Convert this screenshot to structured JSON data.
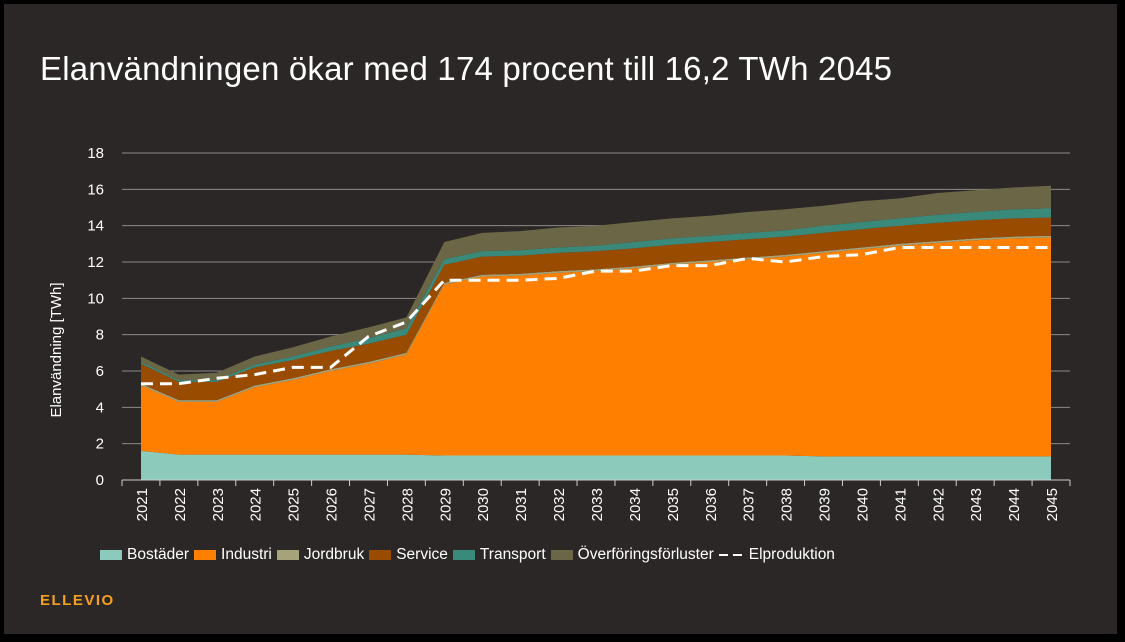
{
  "slide": {
    "title": "Elanvändningen ökar med 174 procent till 16,2 TWh 2045",
    "logo": "ELLEVIO"
  },
  "colors": {
    "background": "#2b2726",
    "grid": "#8c8a88",
    "Bostäder": "#8ccbbb",
    "Industri": "#ff8000",
    "Jordbruk": "#a6a27a",
    "Service": "#994c00",
    "Transport": "#3a8a7c",
    "Överföringsförluster": "#6b6646",
    "Elproduktion": "#ffffff",
    "logo": "#f5a11d"
  },
  "chart_data": {
    "type": "area",
    "stacked": true,
    "title": "Elanvändningen ökar med 174 procent till 16,2 TWh 2045",
    "xlabel": "",
    "ylabel": "Elanvändning [TWh]",
    "ylim": [
      0,
      18
    ],
    "yticks": [
      0,
      2,
      4,
      6,
      8,
      10,
      12,
      14,
      16,
      18
    ],
    "grid": true,
    "legend_position": "bottom",
    "x": [
      "2021",
      "2022",
      "2023",
      "2024",
      "2025",
      "2026",
      "2027",
      "2028",
      "2029",
      "2030",
      "2031",
      "2032",
      "2033",
      "2034",
      "2035",
      "2036",
      "2037",
      "2038",
      "2039",
      "2040",
      "2041",
      "2042",
      "2043",
      "2044",
      "2045"
    ],
    "series": [
      {
        "name": "Bostäder",
        "values": [
          1.6,
          1.4,
          1.4,
          1.4,
          1.4,
          1.4,
          1.4,
          1.4,
          1.35,
          1.35,
          1.35,
          1.35,
          1.35,
          1.35,
          1.35,
          1.35,
          1.35,
          1.35,
          1.3,
          1.3,
          1.3,
          1.3,
          1.3,
          1.3,
          1.3
        ]
      },
      {
        "name": "Industri",
        "values": [
          3.6,
          2.9,
          2.9,
          3.7,
          4.1,
          4.6,
          5.0,
          5.5,
          9.4,
          9.85,
          9.9,
          10.05,
          10.15,
          10.3,
          10.5,
          10.65,
          10.8,
          10.95,
          11.2,
          11.4,
          11.6,
          11.75,
          11.9,
          12.0,
          12.05
        ]
      },
      {
        "name": "Jordbruk",
        "values": [
          0.1,
          0.1,
          0.1,
          0.1,
          0.1,
          0.1,
          0.1,
          0.1,
          0.1,
          0.1,
          0.1,
          0.1,
          0.1,
          0.1,
          0.1,
          0.1,
          0.1,
          0.1,
          0.1,
          0.1,
          0.1,
          0.1,
          0.1,
          0.1,
          0.1
        ]
      },
      {
        "name": "Service",
        "values": [
          1.1,
          1.0,
          1.0,
          1.0,
          1.0,
          1.0,
          1.0,
          1.0,
          1.0,
          1.0,
          1.0,
          1.0,
          1.0,
          1.0,
          1.0,
          1.0,
          1.0,
          1.0,
          1.0,
          1.0,
          1.0,
          1.0,
          1.0,
          1.0,
          1.0
        ]
      },
      {
        "name": "Transport",
        "values": [
          0.1,
          0.1,
          0.1,
          0.15,
          0.2,
          0.25,
          0.3,
          0.35,
          0.3,
          0.3,
          0.3,
          0.3,
          0.3,
          0.35,
          0.35,
          0.35,
          0.35,
          0.35,
          0.4,
          0.4,
          0.4,
          0.45,
          0.45,
          0.5,
          0.5
        ]
      },
      {
        "name": "Överföringsförluster",
        "values": [
          0.3,
          0.3,
          0.4,
          0.45,
          0.5,
          0.55,
          0.6,
          0.6,
          0.95,
          1.0,
          1.05,
          1.1,
          1.1,
          1.1,
          1.1,
          1.1,
          1.15,
          1.15,
          1.1,
          1.15,
          1.1,
          1.2,
          1.2,
          1.2,
          1.25
        ]
      }
    ],
    "line": {
      "name": "Elproduktion",
      "style": "dashed",
      "values": [
        5.3,
        5.3,
        5.6,
        5.8,
        6.2,
        6.2,
        7.9,
        8.7,
        11.0,
        11.0,
        11.0,
        11.1,
        11.5,
        11.5,
        11.8,
        11.8,
        12.2,
        12.0,
        12.3,
        12.4,
        12.8,
        12.8,
        12.8,
        12.8,
        12.8
      ]
    }
  }
}
